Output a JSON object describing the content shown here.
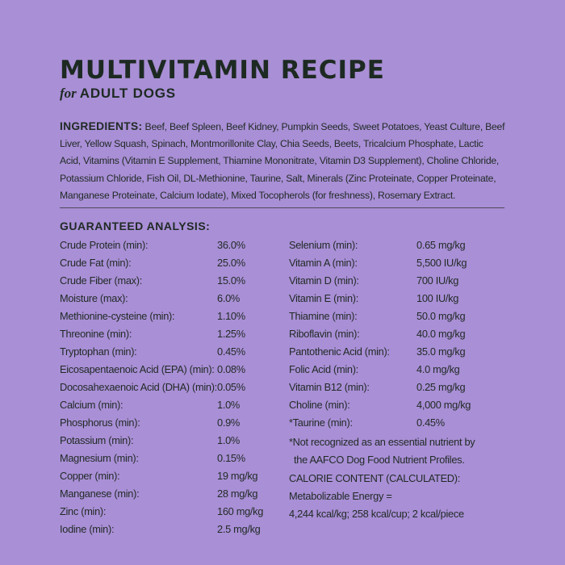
{
  "title": "MULTIVITAMIN RECIPE",
  "subtitle": {
    "for": "for",
    "audience": "ADULT DOGS"
  },
  "ingredients": {
    "label": "INGREDIENTS:",
    "text": "Beef, Beef Spleen, Beef Kidney, Pumpkin Seeds, Sweet Potatoes, Yeast Culture, Beef Liver, Yellow Squash, Spinach, Montmorillonite Clay, Chia Seeds, Beets, Tricalcium Phosphate, Lactic Acid, Vitamins (Vitamin E Supplement, Thiamine Mononitrate, Vitamin D3 Supplement), Choline Chloride, Potassium Chloride, Fish Oil, DL-Methionine, Taurine, Salt, Minerals (Zinc Proteinate, Copper Proteinate, Manganese Proteinate, Calcium Iodate), Mixed Tocopherols (for freshness), Rosemary Extract."
  },
  "analysis": {
    "heading": "GUARANTEED ANALYSIS:",
    "left": [
      {
        "name": "Crude Protein (min):",
        "value": "36.0%"
      },
      {
        "name": "Crude Fat (min):",
        "value": "25.0%"
      },
      {
        "name": "Crude Fiber (max):",
        "value": "15.0%"
      },
      {
        "name": "Moisture (max):",
        "value": "6.0%"
      },
      {
        "name": "Methionine-cysteine (min):",
        "value": "1.10%"
      },
      {
        "name": "Threonine (min):",
        "value": "1.25%"
      },
      {
        "name": "Tryptophan (min):",
        "value": "0.45%"
      },
      {
        "name": "Eicosapentaenoic Acid (EPA) (min):",
        "value": "0.08%"
      },
      {
        "name": "Docosahexaenoic Acid (DHA) (min):",
        "value": "0.05%"
      },
      {
        "name": "Calcium (min):",
        "value": "1.0%"
      },
      {
        "name": "Phosphorus (min):",
        "value": "0.9%"
      },
      {
        "name": "Potassium (min):",
        "value": "1.0%"
      },
      {
        "name": "Magnesium (min):",
        "value": "0.15%"
      },
      {
        "name": "Copper (min):",
        "value": "19 mg/kg"
      },
      {
        "name": "Manganese (min):",
        "value": "28 mg/kg"
      },
      {
        "name": "Zinc (min):",
        "value": "160 mg/kg"
      },
      {
        "name": "Iodine (min):",
        "value": "2.5 mg/kg"
      }
    ],
    "right": [
      {
        "name": "Selenium (min):",
        "value": "0.65 mg/kg"
      },
      {
        "name": "Vitamin A (min):",
        "value": "5,500 IU/kg"
      },
      {
        "name": "Vitamin D (min):",
        "value": "700 IU/kg"
      },
      {
        "name": "Vitamin E (min):",
        "value": "100 IU/kg"
      },
      {
        "name": "Thiamine (min):",
        "value": "50.0 mg/kg"
      },
      {
        "name": "Riboflavin (min):",
        "value": "40.0 mg/kg"
      },
      {
        "name": "Pantothenic Acid (min):",
        "value": "35.0 mg/kg"
      },
      {
        "name": "Folic Acid (min):",
        "value": "4.0 mg/kg"
      },
      {
        "name": "Vitamin B12 (min):",
        "value": "0.25 mg/kg"
      },
      {
        "name": "Choline (min):",
        "value": "4,000 mg/kg"
      },
      {
        "name": "*Taurine (min):",
        "value": "0.45%"
      }
    ],
    "note_line1": "*Not recognized as an essential nutrient by",
    "note_line2": "the AAFCO Dog Food Nutrient Profiles."
  },
  "calorie": {
    "heading": "CALORIE CONTENT (CALCULATED):",
    "line1": "Metabolizable Energy =",
    "line2": "4,244 kcal/kg; 258 kcal/cup; 2 kcal/piece"
  },
  "colors": {
    "background": "#a98fd6",
    "text": "#1f2a24"
  }
}
